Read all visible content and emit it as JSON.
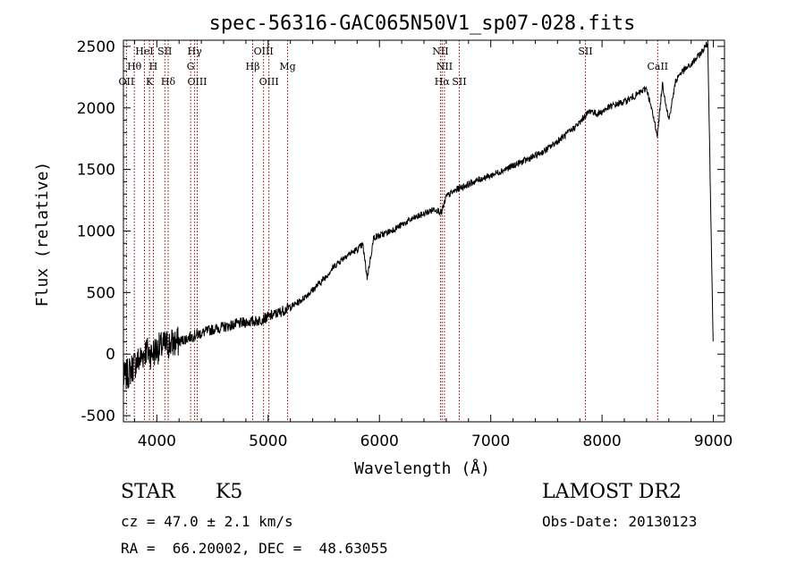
{
  "chart_data": {
    "type": "line",
    "title": "spec-56316-GAC065N50V1_sp07-028.fits",
    "xlabel": "Wavelength (Å)",
    "ylabel": "Flux (relative)",
    "xlim": [
      3700,
      9100
    ],
    "ylim": [
      -550,
      2550
    ],
    "x_ticks": [
      4000,
      5000,
      6000,
      7000,
      8000,
      9000
    ],
    "y_ticks": [
      -500,
      0,
      500,
      1000,
      1500,
      2000,
      2500
    ],
    "grid": false,
    "line_color": "#000000",
    "marker_color": "#8b0000",
    "series": [
      {
        "x": [
          3700,
          3750,
          3800,
          3850,
          3900,
          3950,
          4000,
          4050,
          4100,
          4200,
          4300,
          4400,
          4500,
          4600,
          4700,
          4800,
          4900,
          5000,
          5100,
          5200,
          5300,
          5400,
          5500,
          5600,
          5700,
          5800,
          5850,
          5890,
          5950,
          6000,
          6100,
          6200,
          6300,
          6400,
          6500,
          6560,
          6600,
          6700,
          6800,
          6900,
          7000,
          7100,
          7200,
          7300,
          7400,
          7500,
          7600,
          7700,
          7800,
          7850,
          7900,
          7950,
          8000,
          8050,
          8100,
          8200,
          8300,
          8400,
          8498,
          8542,
          8600,
          8662,
          8700,
          8800,
          8900,
          8950,
          9000
        ],
        "y": [
          -200,
          -150,
          -80,
          -40,
          30,
          0,
          40,
          60,
          80,
          100,
          140,
          170,
          200,
          220,
          240,
          260,
          270,
          300,
          340,
          380,
          440,
          520,
          610,
          720,
          800,
          850,
          890,
          620,
          950,
          960,
          1000,
          1050,
          1100,
          1140,
          1180,
          1150,
          1280,
          1340,
          1380,
          1420,
          1450,
          1490,
          1530,
          1570,
          1610,
          1660,
          1730,
          1800,
          1880,
          1940,
          1980,
          1950,
          1970,
          2000,
          2020,
          2050,
          2100,
          2160,
          1780,
          2200,
          1900,
          2220,
          2280,
          2350,
          2460,
          2530,
          -20
        ]
      }
    ],
    "line_markers": [
      {
        "wl": 3727,
        "label": "OII",
        "row": 2
      },
      {
        "wl": 3798,
        "label": "Hθ",
        "row": 1
      },
      {
        "wl": 3889,
        "label": "HeI",
        "row": 0
      },
      {
        "wl": 3934,
        "label": "K",
        "row": 2
      },
      {
        "wl": 3969,
        "label": "H",
        "row": 1
      },
      {
        "wl": 4072,
        "label": "SII",
        "row": 0
      },
      {
        "wl": 4102,
        "label": "Hδ",
        "row": 2
      },
      {
        "wl": 4304,
        "label": "G",
        "row": 1
      },
      {
        "wl": 4340,
        "label": "Hγ",
        "row": 0
      },
      {
        "wl": 4363,
        "label": "OIII",
        "row": 2
      },
      {
        "wl": 4861,
        "label": "Hβ",
        "row": 1
      },
      {
        "wl": 4959,
        "label": "OIII",
        "row": 0
      },
      {
        "wl": 5007,
        "label": "OIII",
        "row": 2
      },
      {
        "wl": 5175,
        "label": "Mg",
        "row": 1
      },
      {
        "wl": 6548,
        "label": "NII",
        "row": 0
      },
      {
        "wl": 6563,
        "label": "Hα",
        "row": 2
      },
      {
        "wl": 6584,
        "label": "NII",
        "row": 1
      },
      {
        "wl": 6717,
        "label": "SII",
        "row": 2
      },
      {
        "wl": 7850,
        "label": "SII",
        "row": 0
      },
      {
        "wl": 8500,
        "label": "CaII",
        "row": 1
      }
    ]
  },
  "info": {
    "class_label": "STAR",
    "subclass_label": "K5",
    "cz_text": "cz = 47.0 ± 2.1 km/s",
    "coords_text": "RA =  66.20002, DEC =  48.63055",
    "survey_label": "LAMOST DR2",
    "obs_date_text": "Obs-Date: 20130123"
  }
}
